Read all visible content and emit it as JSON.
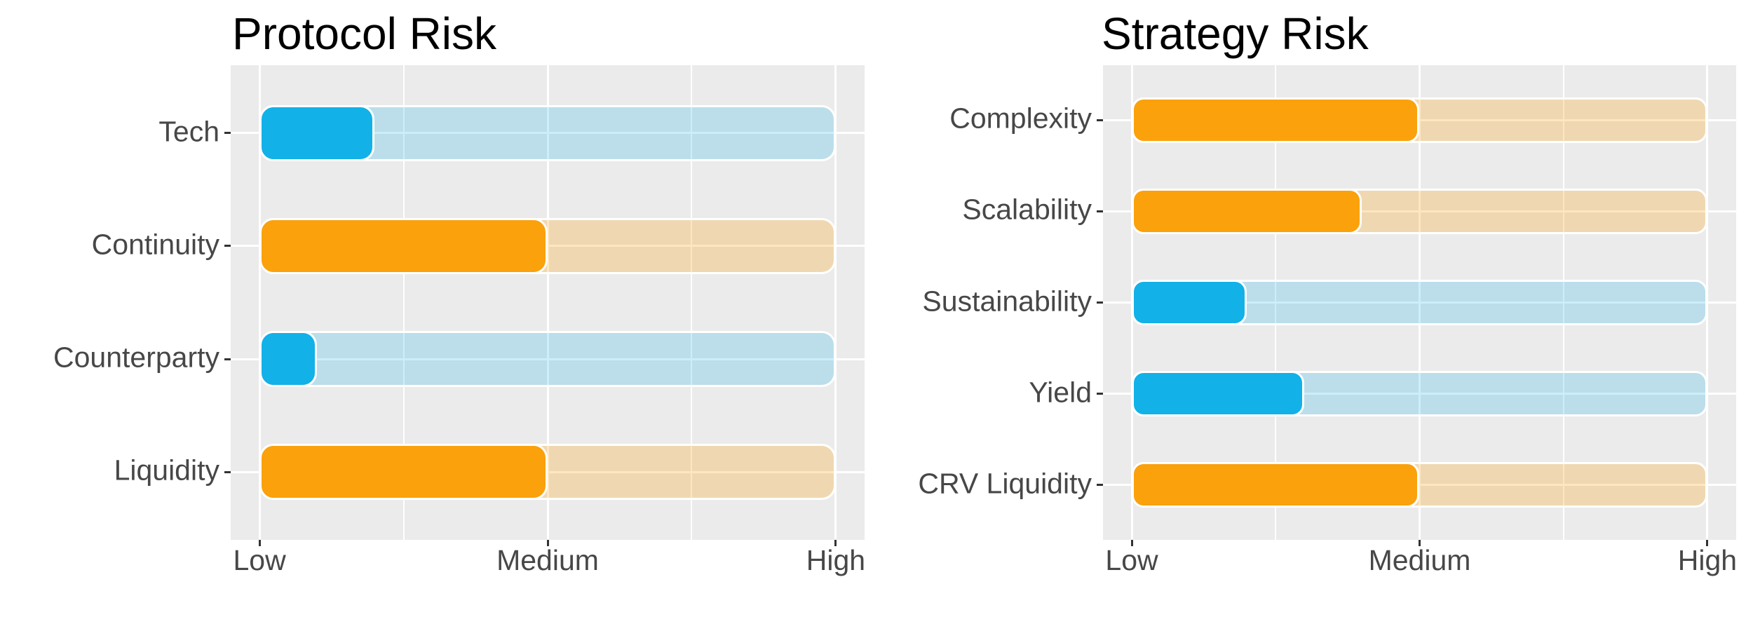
{
  "colors": {
    "background": "#ffffff",
    "panel_bg": "#EBEBEB",
    "gridline": "#ffffff",
    "axis_text": "#474747",
    "title_text": "#000000",
    "blue_fill": "#12B1E8",
    "orange_fill": "#FAA10C",
    "blue_track": "rgba(18,177,232,0.22)",
    "orange_track": "rgba(250,161,12,0.26)"
  },
  "chart_data": [
    {
      "type": "bar",
      "orientation": "horizontal",
      "title": "Protocol Risk",
      "categories": [
        "Tech",
        "Continuity",
        "Counterparty",
        "Liquidity"
      ],
      "values": [
        1.4,
        2.0,
        1.2,
        2.0
      ],
      "bar_colors": [
        "blue",
        "orange",
        "blue",
        "orange"
      ],
      "track_range": [
        1,
        3
      ],
      "x_tick_labels": [
        "Low",
        "Medium",
        "High"
      ],
      "x_tick_values": [
        1,
        2,
        3
      ],
      "x_minor_values": [
        1.5,
        2.5
      ],
      "xlim": [
        0.9,
        3.1
      ],
      "grid": "on",
      "legend": "none"
    },
    {
      "type": "bar",
      "orientation": "horizontal",
      "title": "Strategy Risk",
      "categories": [
        "Complexity",
        "Scalability",
        "Sustainability",
        "Yield",
        "CRV Liquidity"
      ],
      "values": [
        2.0,
        1.8,
        1.4,
        1.6,
        2.0
      ],
      "bar_colors": [
        "orange",
        "orange",
        "blue",
        "blue",
        "orange"
      ],
      "track_range": [
        1,
        3
      ],
      "x_tick_labels": [
        "Low",
        "Medium",
        "High"
      ],
      "x_tick_values": [
        1,
        2,
        3
      ],
      "x_minor_values": [
        1.5,
        2.5
      ],
      "xlim": [
        0.9,
        3.1
      ],
      "grid": "on",
      "legend": "none"
    }
  ]
}
